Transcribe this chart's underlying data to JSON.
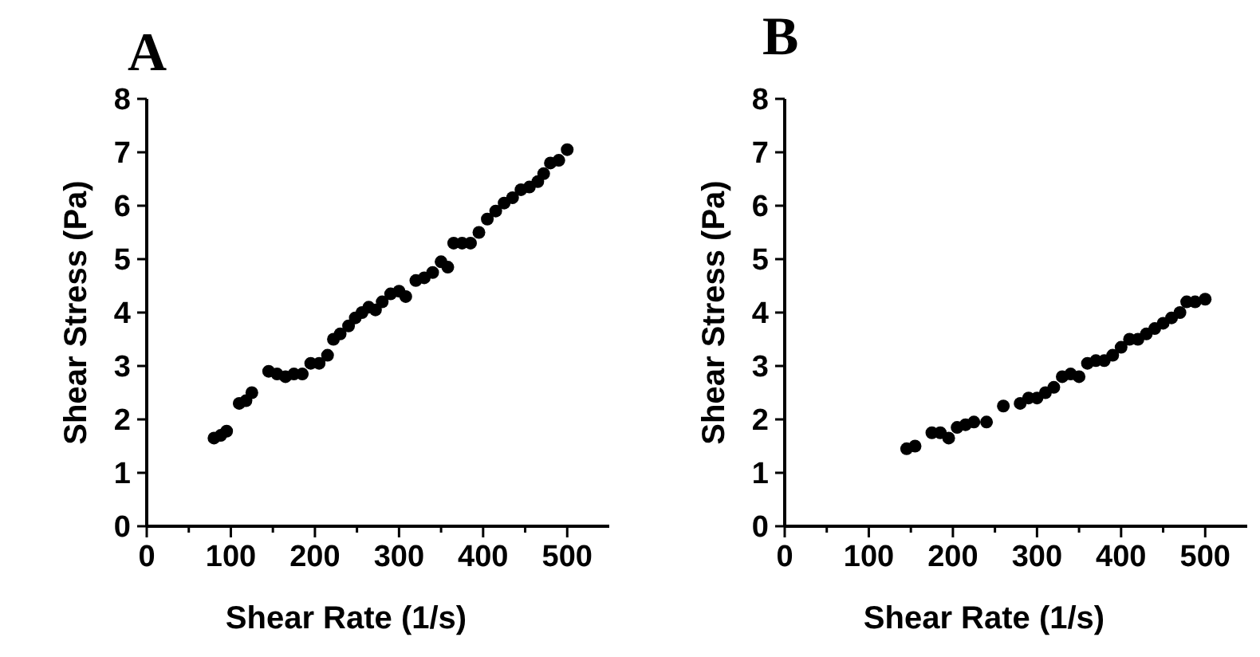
{
  "chart_data": [
    {
      "type": "scatter",
      "title": "A",
      "xlabel": "Shear Rate (1/s)",
      "ylabel": "Shear Stress (Pa)",
      "marker": "circle",
      "grid": false,
      "xlim": [
        0,
        550
      ],
      "ylim": [
        0,
        8
      ],
      "xticks": [
        0,
        {
          "value": 50,
          "label": null
        },
        100,
        {
          "value": 150,
          "label": null
        },
        200,
        {
          "value": 250,
          "label": null
        },
        300,
        {
          "value": 350,
          "label": null
        },
        400,
        {
          "value": 450,
          "label": null
        },
        500
      ],
      "yticks": [
        0,
        1,
        2,
        3,
        4,
        5,
        6,
        7,
        8
      ],
      "series": [
        {
          "color": "#000000",
          "x": [
            80,
            88,
            95,
            110,
            118,
            125,
            145,
            155,
            165,
            175,
            185,
            195,
            205,
            215,
            222,
            230,
            240,
            248,
            256,
            264,
            272,
            280,
            290,
            300,
            308,
            320,
            330,
            340,
            350,
            358,
            365,
            375,
            385,
            395,
            405,
            415,
            425,
            435,
            445,
            455,
            465,
            472,
            480,
            490,
            500
          ],
          "values": [
            1.65,
            1.7,
            1.78,
            2.3,
            2.35,
            2.5,
            2.9,
            2.85,
            2.8,
            2.85,
            2.85,
            3.05,
            3.05,
            3.2,
            3.5,
            3.6,
            3.75,
            3.9,
            4.0,
            4.1,
            4.05,
            4.2,
            4.35,
            4.4,
            4.3,
            4.6,
            4.65,
            4.75,
            4.95,
            4.85,
            5.3,
            5.3,
            5.3,
            5.5,
            5.75,
            5.9,
            6.05,
            6.15,
            6.3,
            6.35,
            6.45,
            6.6,
            6.8,
            6.85,
            7.05
          ]
        }
      ]
    },
    {
      "type": "scatter",
      "title": "B",
      "xlabel": "Shear Rate (1/s)",
      "ylabel": "Shear Stress (Pa)",
      "marker": "circle",
      "grid": false,
      "xlim": [
        0,
        550
      ],
      "ylim": [
        0,
        8
      ],
      "xticks": [
        0,
        {
          "value": 50,
          "label": null
        },
        100,
        {
          "value": 150,
          "label": null
        },
        200,
        {
          "value": 250,
          "label": null
        },
        300,
        {
          "value": 350,
          "label": null
        },
        400,
        {
          "value": 450,
          "label": null
        },
        500
      ],
      "yticks": [
        0,
        1,
        2,
        3,
        4,
        5,
        6,
        7,
        8
      ],
      "series": [
        {
          "color": "#000000",
          "x": [
            145,
            155,
            175,
            185,
            195,
            205,
            215,
            225,
            240,
            260,
            280,
            290,
            300,
            310,
            320,
            330,
            340,
            350,
            360,
            370,
            380,
            390,
            400,
            410,
            420,
            430,
            440,
            450,
            460,
            470,
            478,
            488,
            500
          ],
          "values": [
            1.45,
            1.5,
            1.75,
            1.75,
            1.65,
            1.85,
            1.9,
            1.95,
            1.95,
            2.25,
            2.3,
            2.4,
            2.4,
            2.5,
            2.6,
            2.8,
            2.85,
            2.8,
            3.05,
            3.1,
            3.1,
            3.2,
            3.35,
            3.5,
            3.5,
            3.6,
            3.7,
            3.8,
            3.9,
            4.0,
            4.2,
            4.2,
            4.25
          ]
        }
      ]
    }
  ]
}
